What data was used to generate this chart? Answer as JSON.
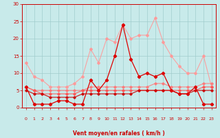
{
  "x": [
    0,
    1,
    2,
    3,
    4,
    5,
    6,
    7,
    8,
    9,
    10,
    11,
    12,
    13,
    14,
    15,
    16,
    17,
    18,
    19,
    20,
    21,
    22,
    23
  ],
  "series": [
    {
      "y": [
        6,
        1,
        1,
        1,
        2,
        2,
        1,
        1,
        8,
        5,
        8,
        15,
        24,
        14,
        9,
        10,
        9,
        10,
        5,
        4,
        4,
        6,
        1,
        1
      ],
      "color": "#dd0000",
      "lw": 0.9,
      "ms": 2.2,
      "alpha": 1.0,
      "zorder": 5
    },
    {
      "y": [
        13,
        9,
        8,
        6,
        6,
        6,
        7,
        9,
        17,
        13,
        20,
        19,
        24,
        20,
        21,
        21,
        26,
        19,
        15,
        12,
        10,
        10,
        15,
        6
      ],
      "color": "#ff9999",
      "lw": 0.8,
      "ms": 2.0,
      "alpha": 0.9,
      "zorder": 3
    },
    {
      "y": [
        6,
        5,
        4,
        4,
        4,
        4,
        4,
        5,
        5,
        5,
        5,
        5,
        5,
        5,
        5,
        5,
        5,
        5,
        5,
        5,
        5,
        5,
        6,
        6
      ],
      "color": "#ff5555",
      "lw": 0.8,
      "ms": 1.8,
      "alpha": 0.9,
      "zorder": 4
    },
    {
      "y": [
        5,
        4,
        4,
        3,
        3,
        3,
        3,
        4,
        4,
        4,
        4,
        4,
        4,
        4,
        5,
        5,
        5,
        5,
        5,
        4,
        4,
        5,
        5,
        5
      ],
      "color": "#cc0000",
      "lw": 0.9,
      "ms": 1.8,
      "alpha": 0.85,
      "zorder": 4
    },
    {
      "y": [
        6,
        5,
        5,
        5,
        5,
        5,
        5,
        5,
        6,
        6,
        6,
        6,
        6,
        6,
        6,
        6,
        7,
        7,
        6,
        6,
        6,
        6,
        7,
        7
      ],
      "color": "#ff7777",
      "lw": 0.8,
      "ms": 1.8,
      "alpha": 0.85,
      "zorder": 3
    }
  ],
  "wind_arrows": [
    "↙",
    "←",
    "←",
    "↖",
    "↖",
    "→",
    "→",
    "→",
    "→",
    "→",
    "→",
    "→",
    "→",
    "→",
    "→",
    "→",
    "→",
    "↓",
    "↘",
    "↘",
    "↘",
    "↘",
    "↙",
    "↙"
  ],
  "bg_color": "#c8eaea",
  "grid_color": "#a0cccc",
  "xlabel": "Vent moyen/en rafales ( km/h )",
  "ylim": [
    0,
    30
  ],
  "xlim": [
    -0.5,
    23.5
  ],
  "yticks": [
    0,
    5,
    10,
    15,
    20,
    25,
    30
  ],
  "xticks": [
    0,
    1,
    2,
    3,
    4,
    5,
    6,
    7,
    8,
    9,
    10,
    11,
    12,
    13,
    14,
    15,
    16,
    17,
    18,
    19,
    20,
    21,
    22,
    23
  ],
  "tick_color": "#cc0000",
  "spine_color": "#cc0000",
  "xlabel_color": "#cc0000"
}
